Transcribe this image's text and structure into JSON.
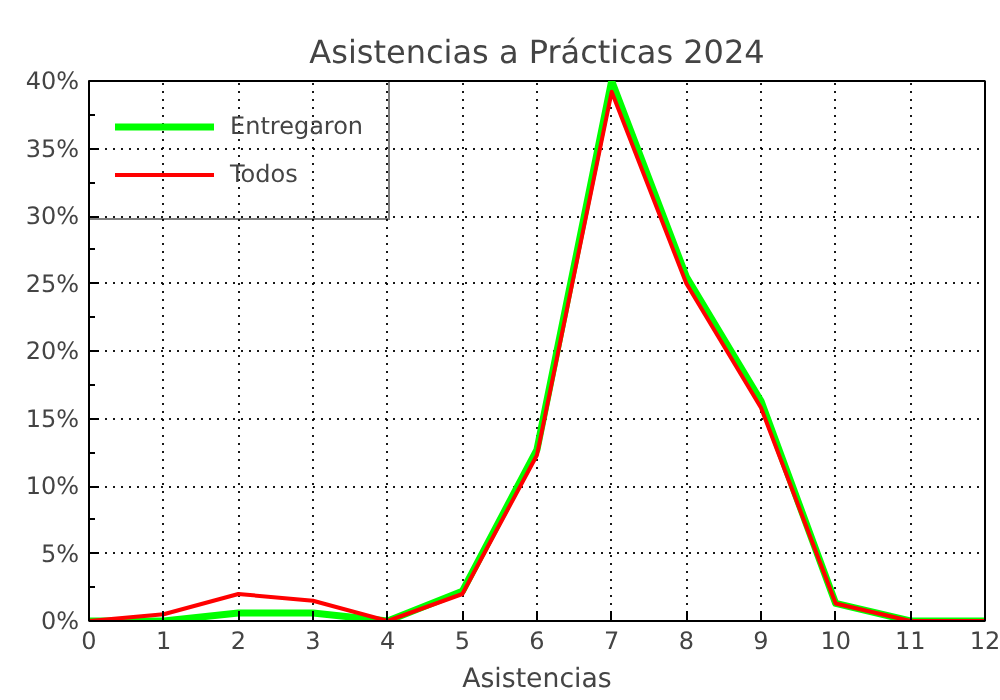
{
  "chart_data": {
    "type": "line",
    "title": "Asistencias a Prácticas 2024",
    "xlabel": "Asistencias",
    "x": [
      0,
      1,
      2,
      3,
      4,
      5,
      6,
      7,
      8,
      9,
      10,
      11,
      12
    ],
    "series": [
      {
        "name": "Entregaron",
        "color": "#00ff00",
        "values": [
          0,
          0,
          0.6,
          0.6,
          0,
          2.2,
          12.7,
          40,
          25.5,
          16.3,
          1.3,
          0,
          0
        ]
      },
      {
        "name": "Todos",
        "color": "#ff0000",
        "values": [
          0,
          0.5,
          2,
          1.5,
          0,
          2,
          12.3,
          39.2,
          25,
          15.8,
          1.3,
          0,
          0
        ]
      }
    ],
    "xlim": [
      0,
      12
    ],
    "xticks": [
      0,
      1,
      2,
      3,
      4,
      5,
      6,
      7,
      8,
      9,
      10,
      11,
      12
    ],
    "ylim": [
      0,
      40
    ],
    "yticks": [
      {
        "value": 0,
        "label": "0%"
      },
      {
        "value": 5,
        "label": "5%"
      },
      {
        "value": 10,
        "label": "10%"
      },
      {
        "value": 15,
        "label": "15%"
      },
      {
        "value": 20,
        "label": "20%"
      },
      {
        "value": 25,
        "label": "25%"
      },
      {
        "value": 30,
        "label": "30%"
      },
      {
        "value": 35,
        "label": "35%"
      },
      {
        "value": 40,
        "label": "40%"
      }
    ],
    "grid": true,
    "legend": "top left",
    "line_style": "solid"
  }
}
